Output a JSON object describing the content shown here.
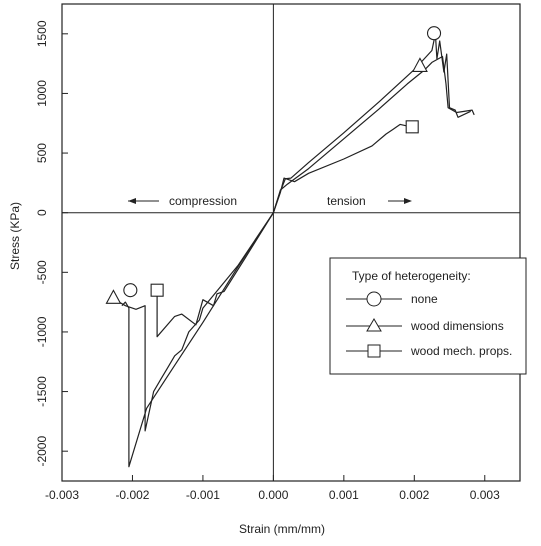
{
  "chart_data": {
    "type": "line",
    "xlabel": "Strain (mm/mm)",
    "ylabel": "Stress (KPa)",
    "xlim": [
      -0.003,
      0.0035
    ],
    "ylim": [
      -2250,
      1750
    ],
    "x_ticks": [
      -0.003,
      -0.002,
      -0.001,
      0.0,
      0.001,
      0.002,
      0.003
    ],
    "x_tick_labels": [
      "-0.003",
      "-0.002",
      "-0.001",
      "0.000",
      "0.001",
      "0.002",
      "0.003"
    ],
    "y_ticks": [
      -2000,
      -1500,
      -1000,
      -500,
      0,
      500,
      1000,
      1500
    ],
    "y_tick_labels": [
      "-2000",
      "-1500",
      "-1000",
      "-500",
      "0",
      "500",
      "1000",
      "1500"
    ],
    "grid": false,
    "annotations": {
      "compression": "compression",
      "tension": "tension"
    },
    "legend": {
      "title": "Type of heterogeneity:",
      "placement": "right-middle",
      "entries": [
        {
          "label": "none",
          "marker": "circle"
        },
        {
          "label": "wood dimensions",
          "marker": "triangle"
        },
        {
          "label": "wood mech. props.",
          "marker": "square"
        }
      ]
    },
    "series": [
      {
        "name": "none",
        "marker": "circle",
        "end_markers": [
          [
            0.00228,
            1505
          ],
          [
            -0.00203,
            -650
          ]
        ],
        "tension": [
          [
            0.0,
            0
          ],
          [
            0.0001,
            180
          ],
          [
            0.00017,
            285
          ],
          [
            0.00025,
            290
          ],
          [
            0.0005,
            420
          ],
          [
            0.001,
            670
          ],
          [
            0.0015,
            930
          ],
          [
            0.002,
            1200
          ],
          [
            0.00225,
            1360
          ],
          [
            0.0023,
            1500
          ],
          [
            0.00232,
            1290
          ],
          [
            0.00236,
            1440
          ],
          [
            0.00242,
            1180
          ],
          [
            0.00246,
            1330
          ],
          [
            0.0025,
            880
          ],
          [
            0.00258,
            860
          ],
          [
            0.00262,
            800
          ],
          [
            0.0028,
            850
          ]
        ],
        "compression": [
          [
            0.0,
            0
          ],
          [
            -0.0005,
            -450
          ],
          [
            -0.001,
            -920
          ],
          [
            -0.0014,
            -1280
          ],
          [
            -0.0018,
            -1640
          ],
          [
            -0.00205,
            -2130
          ],
          [
            -0.00205,
            -800
          ],
          [
            -0.0021,
            -750
          ],
          [
            -0.00215,
            -780
          ]
        ]
      },
      {
        "name": "wood dimensions",
        "marker": "triangle",
        "end_markers": [
          [
            0.00208,
            1235
          ],
          [
            -0.00227,
            -710
          ]
        ],
        "tension": [
          [
            0.0,
            0
          ],
          [
            0.0001,
            190
          ],
          [
            0.0002,
            240
          ],
          [
            0.0005,
            370
          ],
          [
            0.001,
            620
          ],
          [
            0.0015,
            870
          ],
          [
            0.0019,
            1080
          ],
          [
            0.00215,
            1200
          ],
          [
            0.00225,
            1260
          ],
          [
            0.0024,
            1310
          ],
          [
            0.00245,
            1080
          ],
          [
            0.00248,
            880
          ],
          [
            0.0026,
            840
          ],
          [
            0.00282,
            860
          ],
          [
            0.00285,
            820
          ]
        ],
        "compression": [
          [
            0.0,
            0
          ],
          [
            -0.0005,
            -440
          ],
          [
            -0.001,
            -800
          ],
          [
            -0.00105,
            -900
          ],
          [
            -0.0012,
            -1000
          ],
          [
            -0.0013,
            -1150
          ],
          [
            -0.0014,
            -1200
          ],
          [
            -0.0015,
            -1300
          ],
          [
            -0.0016,
            -1400
          ],
          [
            -0.0017,
            -1500
          ],
          [
            -0.00182,
            -1830
          ],
          [
            -0.00182,
            -780
          ],
          [
            -0.00195,
            -810
          ],
          [
            -0.0021,
            -780
          ],
          [
            -0.00222,
            -740
          ]
        ]
      },
      {
        "name": "wood mech. props.",
        "marker": "square",
        "end_markers": [
          [
            0.00197,
            720
          ],
          [
            -0.00165,
            -650
          ]
        ],
        "tension": [
          [
            0.0,
            0
          ],
          [
            0.0001,
            170
          ],
          [
            0.00015,
            290
          ],
          [
            0.0003,
            260
          ],
          [
            0.0005,
            330
          ],
          [
            0.001,
            450
          ],
          [
            0.0014,
            560
          ],
          [
            0.0016,
            660
          ],
          [
            0.0017,
            700
          ],
          [
            0.0018,
            740
          ],
          [
            0.00195,
            720
          ]
        ],
        "compression": [
          [
            0.0,
            0
          ],
          [
            -0.0004,
            -380
          ],
          [
            -0.0007,
            -660
          ],
          [
            -0.0008,
            -680
          ],
          [
            -0.00085,
            -780
          ],
          [
            -0.001,
            -730
          ],
          [
            -0.0011,
            -940
          ],
          [
            -0.0013,
            -850
          ],
          [
            -0.0014,
            -870
          ],
          [
            -0.00165,
            -1040
          ],
          [
            -0.00165,
            -650
          ]
        ]
      }
    ]
  }
}
